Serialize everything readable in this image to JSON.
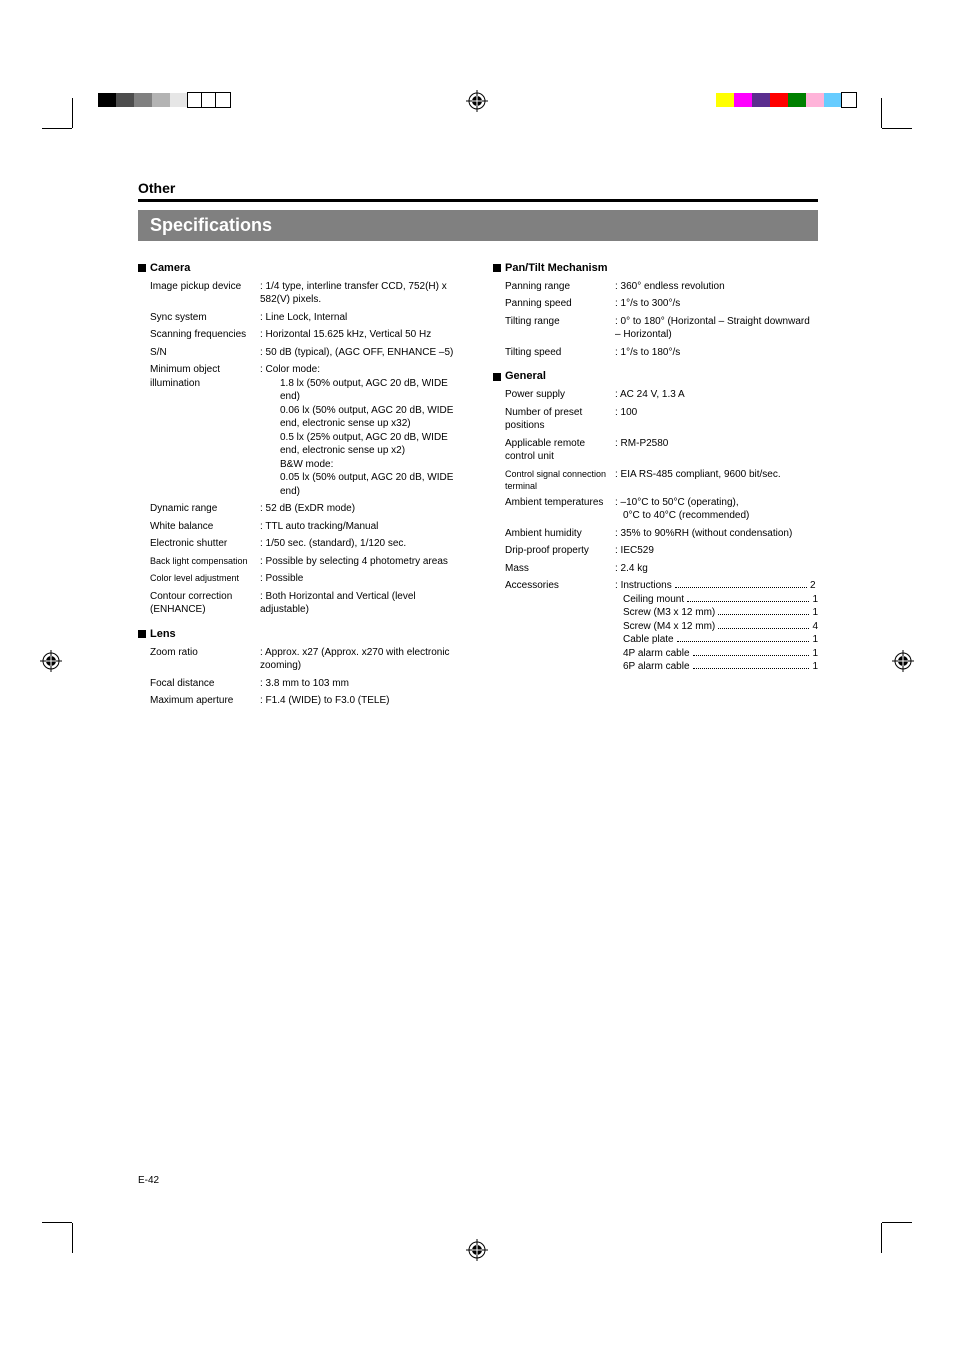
{
  "section_label": "Other",
  "title": "Specifications",
  "page_num": "E-42",
  "color_bar_left": [
    {
      "c": "#000000",
      "w": 18
    },
    {
      "c": "#4d4d4d",
      "w": 18
    },
    {
      "c": "#808080",
      "w": 18
    },
    {
      "c": "#b3b3b3",
      "w": 18
    },
    {
      "c": "#e6e6e6",
      "w": 18
    },
    {
      "c": "#ffffff",
      "w": 14,
      "border": true
    },
    {
      "c": "#ffffff",
      "w": 14,
      "border": true
    },
    {
      "c": "#ffffff",
      "w": 14,
      "border": true
    }
  ],
  "color_bar_right": [
    {
      "c": "#ffff00",
      "w": 18
    },
    {
      "c": "#ff00ff",
      "w": 18
    },
    {
      "c": "#5b2d8e",
      "w": 18
    },
    {
      "c": "#ff0000",
      "w": 18
    },
    {
      "c": "#008000",
      "w": 18
    },
    {
      "c": "#ffb3d9",
      "w": 18
    },
    {
      "c": "#66ccff",
      "w": 18
    },
    {
      "c": "#ffffff",
      "w": 14,
      "border": true
    }
  ],
  "groups_left": [
    {
      "name": "Camera",
      "rows": [
        {
          "label": "Image pickup device",
          "value": ": 1/4 type, interline transfer CCD, 752(H) x 582(V) pixels."
        },
        {
          "label": "Sync system",
          "value": ": Line Lock, Internal"
        },
        {
          "label": "Scanning frequencies",
          "value": ": Horizontal 15.625 kHz, Vertical 50 Hz"
        },
        {
          "label": "S/N",
          "value": ": 50 dB (typical), (AGC OFF, ENHANCE –5)"
        },
        {
          "label": "Minimum object illumination",
          "value": ": Color mode:\n1.8 lx (50% output, AGC 20 dB, WIDE end)\n0.06 lx (50% output, AGC 20 dB, WIDE end, electronic sense up x32)\n0.5 lx (25% output, AGC 20 dB, WIDE end, electronic sense up x2)\nB&W mode:\n0.05 lx (50% output, AGC 20 dB, WIDE end)",
          "complex": true
        },
        {
          "label": "Dynamic range",
          "value": ": 52 dB (ExDR mode)"
        },
        {
          "label": "White balance",
          "value": ": TTL auto tracking/Manual"
        },
        {
          "label": "Electronic shutter",
          "value": ": 1/50 sec. (standard), 1/120 sec."
        },
        {
          "label": "Back light compensation",
          "value": ": Possible by selecting 4 photometry areas",
          "small_label": true
        },
        {
          "label": "Color level adjustment",
          "value": ": Possible",
          "small_label": true
        },
        {
          "label": "Contour correction (ENHANCE)",
          "value": ": Both Horizontal and Vertical (level adjustable)"
        }
      ]
    },
    {
      "name": "Lens",
      "rows": [
        {
          "label": "Zoom ratio",
          "value": ": Approx. x27 (Approx. x270 with electronic zooming)"
        },
        {
          "label": "Focal distance",
          "value": ": 3.8 mm to 103 mm"
        },
        {
          "label": "Maximum aperture",
          "value": ": F1.4 (WIDE) to F3.0 (TELE)"
        }
      ]
    }
  ],
  "groups_right": [
    {
      "name": "Pan/Tilt Mechanism",
      "rows": [
        {
          "label": "Panning range",
          "value": ": 360° endless revolution"
        },
        {
          "label": "Panning speed",
          "value": ": 1°/s to 300°/s"
        },
        {
          "label": "Tilting range",
          "value": ": 0° to 180° (Horizontal – Straight downward – Horizontal)"
        },
        {
          "label": "Tilting speed",
          "value": ": 1°/s to 180°/s"
        }
      ]
    },
    {
      "name": "General",
      "rows": [
        {
          "label": "Power supply",
          "value": ": AC 24 V, 1.3 A"
        },
        {
          "label": "Number of preset positions",
          "value": ": 100"
        },
        {
          "label": "Applicable remote control unit",
          "value": ": RM-P2580"
        },
        {
          "label": "Control signal connection terminal",
          "value": ": EIA RS-485 compliant, 9600 bit/sec.",
          "small_label": true
        },
        {
          "label": "Ambient temperatures",
          "value": ": –10°C to 50°C (operating), 0°C to 40°C (recommended)",
          "split": true
        },
        {
          "label": "Ambient humidity",
          "value": ": 35% to 90%RH (without condensation)"
        },
        {
          "label": "Drip-proof property",
          "value": ": IEC529"
        },
        {
          "label": "Mass",
          "value": ": 2.4 kg"
        },
        {
          "label": "Accessories",
          "value": "",
          "accessories": [
            {
              "n": "Instructions",
              "q": "2"
            },
            {
              "n": "Ceiling mount",
              "q": "1"
            },
            {
              "n": "Screw (M3 x 12 mm)",
              "q": "1"
            },
            {
              "n": "Screw (M4 x 12 mm)",
              "q": "4"
            },
            {
              "n": "Cable plate",
              "q": "1"
            },
            {
              "n": "4P alarm cable",
              "q": "1"
            },
            {
              "n": "6P alarm cable",
              "q": "1"
            }
          ]
        }
      ]
    }
  ]
}
